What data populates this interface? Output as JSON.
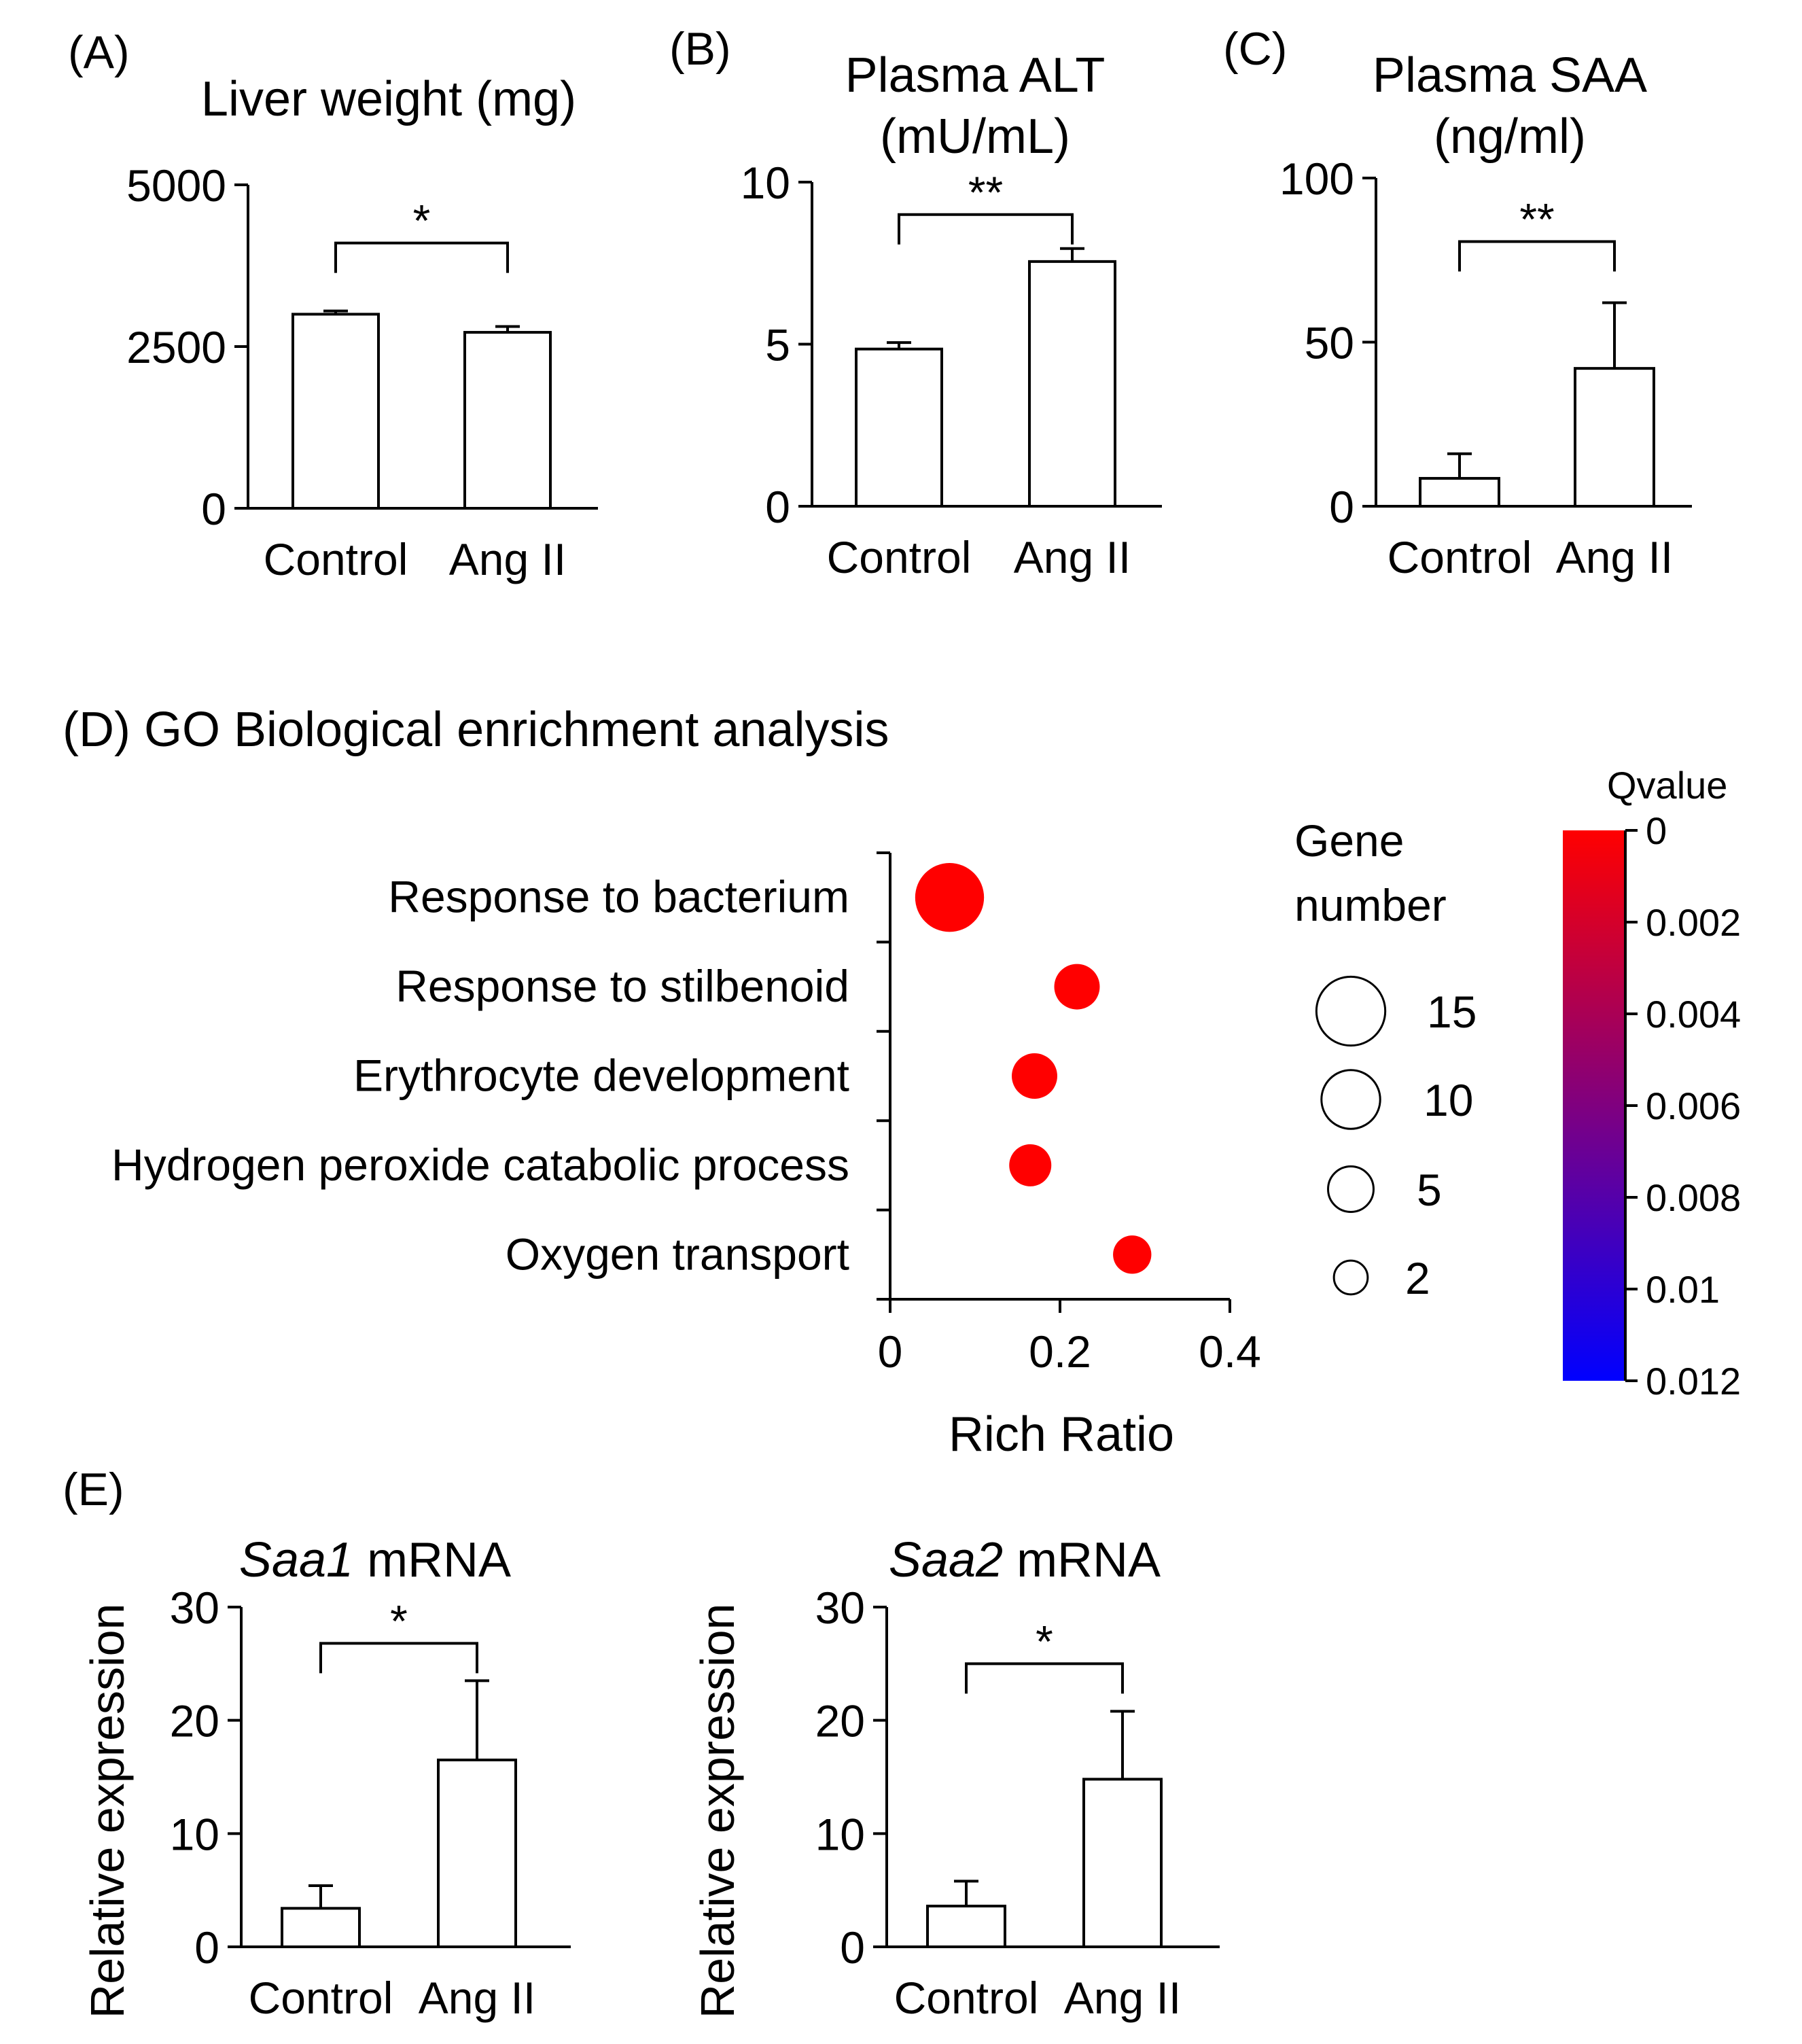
{
  "chart_data": [
    {
      "type": "bar",
      "panel": "(A)",
      "title": "Liver weight (mg)",
      "categories": [
        "Control",
        "Ang II"
      ],
      "values": [
        3000,
        2720
      ],
      "errors": [
        50,
        90
      ],
      "ylim": [
        0,
        5000
      ],
      "yticks": [
        "0",
        "2500",
        "5000"
      ],
      "significance": "*"
    },
    {
      "type": "bar",
      "panel": "(B)",
      "title_lines": [
        "Plasma ALT",
        "(mU/mL)"
      ],
      "categories": [
        "Control",
        "Ang II"
      ],
      "values": [
        4.85,
        7.55
      ],
      "errors": [
        0.2,
        0.4
      ],
      "ylim": [
        0,
        10
      ],
      "yticks": [
        "0",
        "5",
        "10"
      ],
      "significance": "**"
    },
    {
      "type": "bar",
      "panel": "(C)",
      "title_lines": [
        "Plasma SAA",
        "(ng/ml)"
      ],
      "categories": [
        "Control",
        "Ang II"
      ],
      "values": [
        8.5,
        42
      ],
      "errors": [
        7.5,
        20
      ],
      "ylim": [
        0,
        100
      ],
      "yticks": [
        "0",
        "50",
        "100"
      ],
      "significance": "**"
    },
    {
      "type": "scatter",
      "panel_title": "(D) GO Biological enrichment analysis",
      "xlabel": "Rich Ratio",
      "xlim": [
        0,
        0.4
      ],
      "xticks": [
        "0",
        "0.2",
        "0.4"
      ],
      "terms": [
        {
          "term": "Response to bacterium",
          "rich_ratio": 0.07,
          "gene_number": 15,
          "qvalue": 0.0
        },
        {
          "term": "Response to stilbenoid",
          "rich_ratio": 0.22,
          "gene_number": 5,
          "qvalue": 0.0
        },
        {
          "term": "Erythrocyte development",
          "rich_ratio": 0.17,
          "gene_number": 5,
          "qvalue": 0.0
        },
        {
          "term": "Hydrogen peroxide catabolic process",
          "rich_ratio": 0.165,
          "gene_number": 4,
          "qvalue": 0.0
        },
        {
          "term": "Oxygen transport",
          "rich_ratio": 0.285,
          "gene_number": 3,
          "qvalue": 0.0
        }
      ],
      "size_legend": {
        "title_lines": [
          "Gene",
          "number"
        ],
        "values": [
          "15",
          "10",
          "5",
          "2"
        ]
      },
      "color_legend": {
        "title": "Qvalue",
        "ticks": [
          "0",
          "0.002",
          "0.004",
          "0.006",
          "0.008",
          "0.01",
          "0.012"
        ],
        "range": [
          0,
          0.012
        ],
        "colors": [
          "#ff0000",
          "#0000ff"
        ]
      }
    },
    {
      "type": "bar",
      "panel": "(E)",
      "title_italic": "Saa1",
      "title_rest": " mRNA",
      "ylabel": "Relative expression",
      "categories": [
        "Control",
        "Ang II"
      ],
      "values": [
        3.4,
        16.5
      ],
      "errors": [
        2.0,
        7.0
      ],
      "ylim": [
        0,
        30
      ],
      "yticks": [
        "0",
        "10",
        "20",
        "30"
      ],
      "significance": "*"
    },
    {
      "type": "bar",
      "title_italic": "Saa2",
      "title_rest": " mRNA",
      "ylabel": "Relative expression",
      "categories": [
        "Control",
        "Ang II"
      ],
      "values": [
        3.6,
        14.8
      ],
      "errors": [
        2.2,
        6.0
      ],
      "ylim": [
        0,
        30
      ],
      "yticks": [
        "0",
        "10",
        "20",
        "30"
      ],
      "significance": "*"
    }
  ]
}
